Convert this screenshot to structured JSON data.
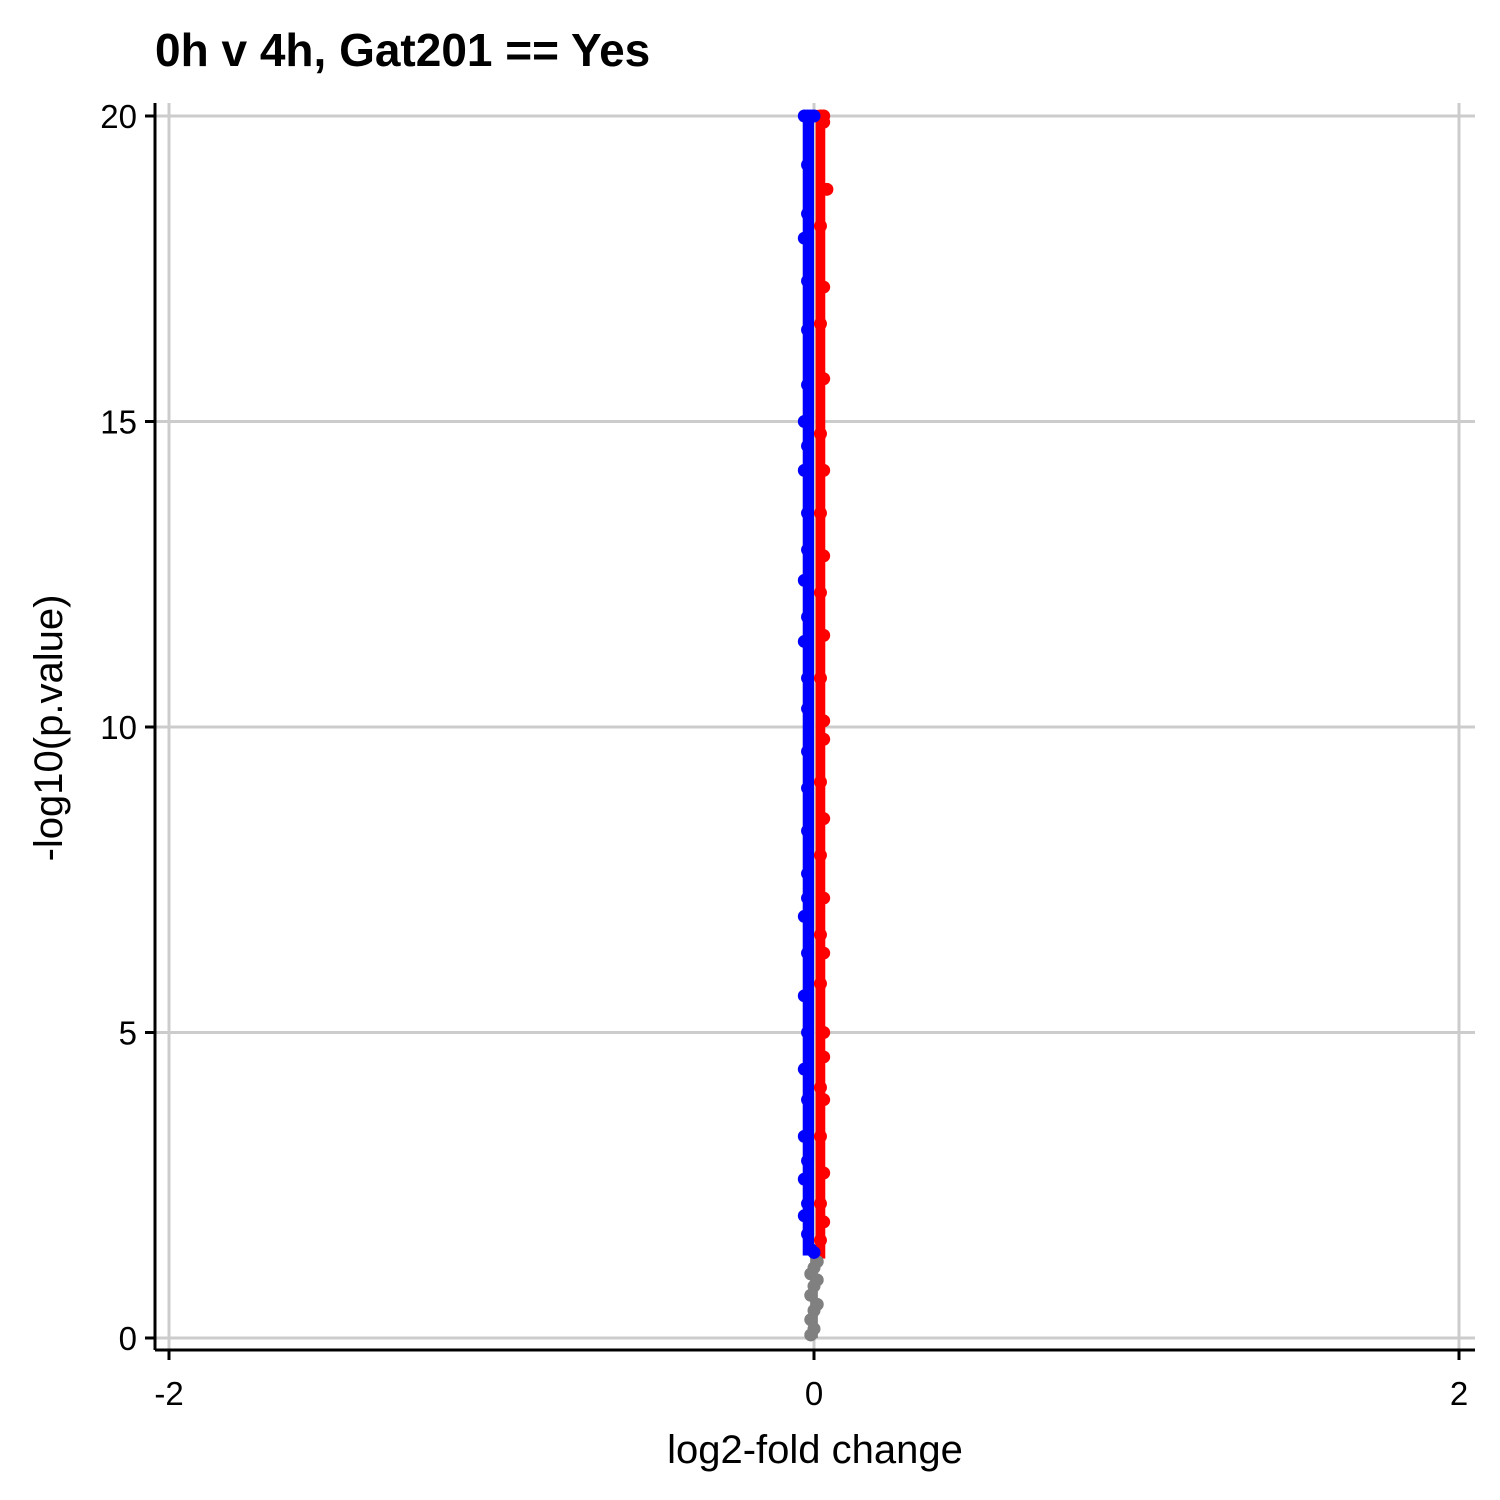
{
  "chart_data": {
    "type": "scatter",
    "title": "0h v 4h, Gat201 == Yes",
    "xlabel": "log2-fold change",
    "ylabel": "-log10(p.value)",
    "xlim": [
      -2,
      2
    ],
    "ylim": [
      0,
      20
    ],
    "x_ticks": [
      "-2",
      "0",
      "2"
    ],
    "y_ticks": [
      "0",
      "5",
      "10",
      "15",
      "20"
    ],
    "grid": true,
    "legend": "none",
    "series": [
      {
        "color": "#808080",
        "points": [
          [
            -0.01,
            0.05
          ],
          [
            0.0,
            0.15
          ],
          [
            -0.01,
            0.3
          ],
          [
            0.0,
            0.45
          ],
          [
            0.01,
            0.55
          ],
          [
            -0.01,
            0.7
          ],
          [
            0.0,
            0.85
          ],
          [
            0.01,
            0.95
          ],
          [
            -0.01,
            1.05
          ],
          [
            0.0,
            1.15
          ],
          [
            0.01,
            1.25
          ]
        ]
      },
      {
        "color": "#ff0000",
        "points": [
          [
            0.02,
            20.0
          ],
          [
            0.03,
            20.0
          ],
          [
            0.03,
            19.9
          ],
          [
            0.04,
            18.8
          ],
          [
            0.02,
            18.2
          ],
          [
            0.03,
            17.2
          ],
          [
            0.02,
            16.6
          ],
          [
            0.03,
            15.7
          ],
          [
            0.02,
            14.8
          ],
          [
            0.03,
            14.2
          ],
          [
            0.02,
            13.5
          ],
          [
            0.03,
            12.8
          ],
          [
            0.02,
            12.2
          ],
          [
            0.03,
            11.5
          ],
          [
            0.02,
            10.8
          ],
          [
            0.03,
            10.1
          ],
          [
            0.03,
            9.8
          ],
          [
            0.02,
            9.1
          ],
          [
            0.03,
            8.5
          ],
          [
            0.02,
            7.9
          ],
          [
            0.03,
            7.2
          ],
          [
            0.02,
            6.6
          ],
          [
            0.03,
            6.3
          ],
          [
            0.02,
            5.8
          ],
          [
            0.03,
            5.0
          ],
          [
            0.03,
            4.6
          ],
          [
            0.02,
            4.1
          ],
          [
            0.03,
            3.9
          ],
          [
            0.02,
            3.3
          ],
          [
            0.03,
            2.7
          ],
          [
            0.02,
            2.2
          ],
          [
            0.03,
            1.9
          ],
          [
            0.02,
            1.6
          ]
        ]
      },
      {
        "color": "#0000ff",
        "points": [
          [
            -0.03,
            20.0
          ],
          [
            -0.02,
            20.0
          ],
          [
            -0.01,
            20.0
          ],
          [
            0.0,
            20.0
          ],
          [
            -0.02,
            19.2
          ],
          [
            -0.02,
            18.4
          ],
          [
            -0.03,
            18.0
          ],
          [
            -0.02,
            17.3
          ],
          [
            -0.02,
            16.5
          ],
          [
            -0.02,
            15.6
          ],
          [
            -0.03,
            15.0
          ],
          [
            -0.02,
            14.6
          ],
          [
            -0.03,
            14.2
          ],
          [
            -0.02,
            13.5
          ],
          [
            -0.02,
            12.9
          ],
          [
            -0.03,
            12.4
          ],
          [
            -0.02,
            11.8
          ],
          [
            -0.03,
            11.4
          ],
          [
            -0.02,
            10.8
          ],
          [
            -0.02,
            10.3
          ],
          [
            -0.02,
            9.6
          ],
          [
            -0.02,
            9.0
          ],
          [
            -0.02,
            8.3
          ],
          [
            -0.02,
            7.6
          ],
          [
            -0.02,
            7.2
          ],
          [
            -0.03,
            6.9
          ],
          [
            -0.02,
            6.3
          ],
          [
            -0.03,
            5.6
          ],
          [
            -0.02,
            5.0
          ],
          [
            -0.03,
            4.4
          ],
          [
            -0.02,
            3.9
          ],
          [
            -0.03,
            3.3
          ],
          [
            -0.02,
            2.9
          ],
          [
            -0.03,
            2.6
          ],
          [
            -0.02,
            2.2
          ],
          [
            -0.03,
            2.0
          ],
          [
            -0.02,
            1.7
          ],
          [
            -0.01,
            1.45
          ],
          [
            0.0,
            1.4
          ]
        ]
      }
    ]
  }
}
